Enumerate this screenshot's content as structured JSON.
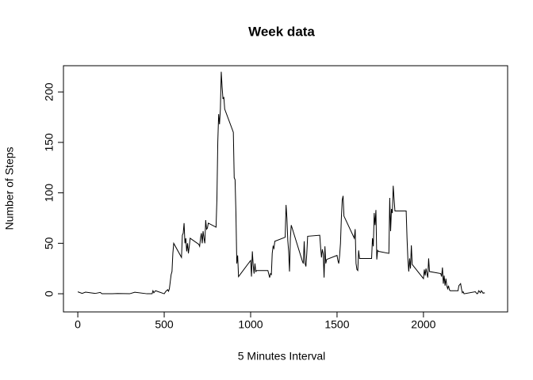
{
  "chart_data": {
    "type": "line",
    "title": "Week data",
    "xlabel": "5 Minutes Interval",
    "ylabel": "Number of Steps",
    "x": [
      0,
      25,
      45,
      100,
      130,
      140,
      200,
      230,
      300,
      330,
      400,
      430,
      435,
      440,
      450,
      500,
      510,
      520,
      525,
      530,
      540,
      545,
      550,
      555,
      600,
      605,
      610,
      615,
      620,
      625,
      630,
      635,
      640,
      645,
      650,
      700,
      705,
      710,
      715,
      720,
      725,
      730,
      735,
      740,
      745,
      750,
      755,
      800,
      805,
      810,
      815,
      820,
      825,
      830,
      835,
      840,
      845,
      850,
      900,
      905,
      910,
      915,
      920,
      925,
      930,
      1000,
      1005,
      1010,
      1015,
      1020,
      1025,
      1030,
      1035,
      1100,
      1110,
      1115,
      1120,
      1125,
      1130,
      1135,
      1140,
      1200,
      1205,
      1210,
      1215,
      1220,
      1225,
      1230,
      1235,
      1300,
      1305,
      1310,
      1315,
      1320,
      1325,
      1330,
      1400,
      1405,
      1410,
      1415,
      1420,
      1425,
      1430,
      1435,
      1440,
      1500,
      1505,
      1510,
      1515,
      1520,
      1525,
      1530,
      1535,
      1540,
      1600,
      1605,
      1610,
      1615,
      1620,
      1625,
      1630,
      1700,
      1705,
      1710,
      1715,
      1720,
      1725,
      1730,
      1735,
      1740,
      1800,
      1805,
      1810,
      1815,
      1820,
      1825,
      1830,
      1835,
      1900,
      1905,
      1910,
      1915,
      1920,
      1925,
      1930,
      1935,
      2000,
      2005,
      2010,
      2015,
      2020,
      2025,
      2030,
      2035,
      2100,
      2105,
      2110,
      2115,
      2120,
      2125,
      2130,
      2135,
      2140,
      2145,
      2150,
      2155,
      2200,
      2205,
      2210,
      2215,
      2220,
      2225,
      2230,
      2235,
      2300,
      2305,
      2310,
      2315,
      2320,
      2325,
      2330,
      2335,
      2340,
      2345,
      2350,
      2355
    ],
    "values": [
      1.9,
      0.4,
      1.6,
      0.3,
      1.3,
      0,
      0,
      0.2,
      0,
      1.5,
      0,
      0,
      3,
      1,
      3,
      0,
      2.5,
      4,
      2.5,
      5,
      19,
      22,
      40,
      50,
      36,
      58,
      60,
      70,
      50,
      55,
      42,
      50,
      40,
      47,
      55,
      49,
      47,
      55,
      60,
      50,
      62,
      55,
      50,
      73,
      64,
      65,
      70,
      66,
      94,
      150,
      178,
      168,
      183,
      220,
      205,
      193,
      195,
      183,
      160,
      115,
      113,
      80,
      30,
      38,
      17,
      33,
      17,
      42,
      28,
      20,
      30,
      22,
      23,
      23,
      16,
      20,
      19,
      40,
      47,
      45,
      52,
      56,
      88,
      75,
      53,
      42,
      22,
      55,
      68,
      32,
      30,
      52,
      30,
      27,
      40,
      57,
      58,
      46,
      36,
      44,
      40,
      16,
      47,
      30,
      34,
      38,
      33,
      30,
      38,
      50,
      75,
      93,
      97,
      77,
      55,
      64,
      30,
      24,
      23,
      43,
      35,
      35,
      55,
      47,
      80,
      68,
      83,
      34,
      43,
      42,
      40,
      95,
      62,
      84,
      80,
      107,
      94,
      82,
      82,
      55,
      34,
      22,
      35,
      25,
      48,
      29,
      15,
      24,
      18,
      25,
      20,
      16,
      35,
      22,
      20,
      17,
      26,
      10,
      18,
      8,
      15,
      8,
      5,
      8,
      4,
      3,
      3,
      8,
      9,
      10,
      5,
      1,
      2,
      0,
      2,
      1,
      0,
      0.5,
      3,
      2,
      1,
      3,
      2,
      0.5,
      1,
      0.6
    ],
    "color": "#000000",
    "xlim": [
      -83,
      2487
    ],
    "ylim": [
      -18,
      226
    ],
    "xticks": [
      0,
      500,
      1000,
      1500,
      2000
    ],
    "yticks": [
      0,
      50,
      100,
      150,
      200
    ]
  }
}
